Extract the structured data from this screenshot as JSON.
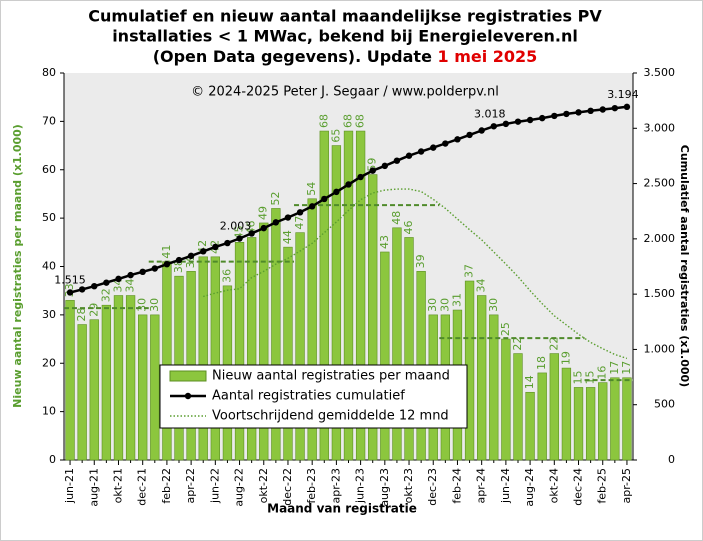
{
  "chart_data": {
    "type": "bar",
    "title_lines": [
      "Cumulatief  en nieuw aantal maandelijkse  registraties PV",
      "installaties  < 1 MWac, bekend bij Energieleveren.nl",
      "(Open Data gegevens). Update "
    ],
    "title_date": "1 mei 2025",
    "annotation": "© 2024-2025  Peter J. Segaar / www.polderpv.nl",
    "xlabel": "Maand van registratie",
    "ylabel": "Nieuw aantal registraties per maand (x1.000)",
    "y2label": "Cumulatief aantal registraties (x1.000)",
    "categories": [
      "jun-21",
      null,
      "aug-21",
      null,
      "okt-21",
      null,
      "dec-21",
      null,
      "feb-22",
      null,
      "apr-22",
      null,
      "jun-22",
      null,
      "aug-22",
      null,
      "okt-22",
      null,
      "dec-22",
      null,
      "feb-23",
      null,
      "apr-23",
      null,
      "jun-23",
      null,
      "aug-23",
      null,
      "okt-23",
      null,
      "dec-23",
      null,
      "feb-24",
      null,
      "apr-24",
      null,
      "jun-24",
      null,
      "aug-24",
      null,
      "okt-24",
      null,
      "dec-24",
      null,
      "feb-25",
      null,
      "apr-25"
    ],
    "ylim": [
      0,
      80
    ],
    "yticks": [
      0,
      10,
      20,
      30,
      40,
      50,
      60,
      70,
      80
    ],
    "y2lim": [
      0,
      3500
    ],
    "y2ticks": [
      0,
      500,
      {
        "value": 1000,
        "label": "1.000"
      },
      {
        "value": 1500,
        "label": "1.500"
      },
      {
        "value": 2000,
        "label": "2.000"
      },
      {
        "value": 2500,
        "label": "2.500"
      },
      {
        "value": 3000,
        "label": "3.000"
      },
      {
        "value": 3500,
        "label": "3.500"
      }
    ],
    "series": [
      {
        "name": "Nieuw aantal registraties per maand",
        "type": "bar",
        "color": "#8cc63e",
        "label_color": "#5a9e2f",
        "values": [
          33,
          28,
          29,
          32,
          34,
          34,
          30,
          30,
          41,
          38,
          39,
          42,
          42,
          36,
          45,
          46,
          49,
          52,
          44,
          47,
          54,
          68,
          65,
          68,
          68,
          59,
          43,
          48,
          46,
          39,
          30,
          30,
          31,
          37,
          34,
          30,
          25,
          22,
          14,
          18,
          22,
          19,
          15,
          15,
          16,
          17,
          17
        ]
      },
      {
        "name": "Aantal registraties cumulatief",
        "type": "line",
        "axis": "y2",
        "color": "#000000",
        "values": [
          1515,
          1543,
          1572,
          1604,
          1638,
          1672,
          1702,
          1732,
          1771,
          1808,
          1846,
          1887,
          1927,
          1962,
          2003,
          2049,
          2097,
          2149,
          2193,
          2240,
          2294,
          2361,
          2425,
          2492,
          2559,
          2617,
          2660,
          2707,
          2752,
          2790,
          2825,
          2862,
          2900,
          2940,
          2980,
          3018,
          3040,
          3060,
          3075,
          3092,
          3112,
          3130,
          3144,
          3158,
          3170,
          3182,
          3194
        ],
        "value_labels": [
          "1.515",
          null,
          null,
          null,
          null,
          null,
          null,
          null,
          null,
          null,
          null,
          null,
          null,
          null,
          "2.003",
          null,
          null,
          null,
          null,
          null,
          null,
          null,
          null,
          null,
          null,
          null,
          null,
          null,
          null,
          null,
          null,
          null,
          null,
          null,
          null,
          "3.018",
          null,
          null,
          null,
          null,
          null,
          null,
          null,
          null,
          null,
          null,
          "3.194"
        ]
      },
      {
        "name": "Voortschrijdend gemiddelde 12 mnd",
        "type": "line",
        "dash": "dotted",
        "color": "#5a9e2f",
        "values": [
          null,
          null,
          null,
          null,
          null,
          null,
          null,
          null,
          null,
          null,
          null,
          33.8,
          34.5,
          35.1,
          35.4,
          37.7,
          39.0,
          40.5,
          41.7,
          43.2,
          44.8,
          47.0,
          49.2,
          51.6,
          53.8,
          55.2,
          55.8,
          56.0,
          56.0,
          55.5,
          53.9,
          52.0,
          49.8,
          47.6,
          45.5,
          43.0,
          40.5,
          37.9,
          35.0,
          32.3,
          29.8,
          27.9,
          26.0,
          24.3,
          23.0,
          21.8,
          21.0
        ]
      }
    ],
    "annual_mean": {
      "color": "#4f8a2a",
      "values": [
        31.4,
        31.4,
        31.4,
        31.4,
        31.4,
        31.4,
        31.4,
        41,
        41,
        41,
        41,
        41,
        41,
        41,
        41,
        41,
        41,
        41,
        41,
        52.7,
        52.7,
        52.7,
        52.7,
        52.7,
        52.7,
        52.7,
        52.7,
        52.7,
        52.7,
        52.7,
        52.7,
        25.2,
        25.2,
        25.2,
        25.2,
        25.2,
        25.2,
        25.2,
        25.2,
        25.2,
        25.2,
        25.2,
        25.2,
        16.5,
        16.5,
        16.5,
        16.5
      ]
    },
    "legend": "lower-left"
  }
}
